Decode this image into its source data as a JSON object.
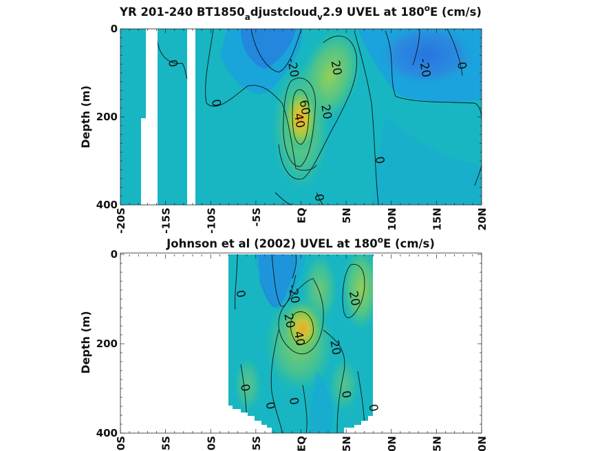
{
  "chart_data": [
    {
      "type": "heatmap",
      "title": {
        "main": "YR 201-240 BT1850",
        "sub1": "a",
        "mid": "djustcloud",
        "sub2": "v",
        "tail": "2.9 UVEL at 180",
        "sup": "o",
        "end": "E (cm/s)"
      },
      "ylabel": "Depth (m)",
      "xlim": [
        -20,
        20
      ],
      "ylim": [
        0,
        400
      ],
      "xticks": [
        -20,
        -15,
        -10,
        -5,
        0,
        5,
        10,
        15,
        20
      ],
      "xticklabels": [
        "-20S",
        "-15S",
        "-10S",
        "-5S",
        "EQ",
        "5N",
        "10N",
        "15N",
        "20N"
      ],
      "yticks": [
        0,
        200,
        400
      ],
      "yticklabels": [
        "0",
        "200",
        "400"
      ],
      "colormap": [
        "#2b6fe0",
        "#1aa3dc",
        "#17b6c2",
        "#3fc28f",
        "#8fcc55",
        "#e0c12d",
        "#f7a21f"
      ],
      "color_range": [
        -40,
        40
      ],
      "no_data_gaps": [
        [
          -17.6,
          -16.3
        ],
        [
          -13.5,
          -12.5
        ]
      ],
      "core": {
        "lat": 0.3,
        "depth": 170,
        "max_cmps": 60
      },
      "contour_labels": [
        {
          "text": "0",
          "lat": -14.6,
          "depth": 80
        },
        {
          "text": "0",
          "lat": -9.8,
          "depth": 170
        },
        {
          "text": "-20",
          "lat": -1.3,
          "depth": 90
        },
        {
          "text": "20",
          "lat": 3.5,
          "depth": 90
        },
        {
          "text": "60",
          "lat": 0.0,
          "depth": 180
        },
        {
          "text": "40",
          "lat": -0.6,
          "depth": 210
        },
        {
          "text": "20",
          "lat": 2.4,
          "depth": 190
        },
        {
          "text": "0",
          "lat": 8.3,
          "depth": 300
        },
        {
          "text": "0",
          "lat": 1.6,
          "depth": 385
        },
        {
          "text": "-20",
          "lat": 13.3,
          "depth": 90
        },
        {
          "text": "0",
          "lat": 17.4,
          "depth": 85
        }
      ]
    },
    {
      "type": "heatmap",
      "title": {
        "main": "Johnson et al (2002) UVEL at 180",
        "sup": "o",
        "end": "E (cm/s)"
      },
      "ylabel": "Depth (m)",
      "xlim": [
        -20,
        20
      ],
      "ylim": [
        0,
        400
      ],
      "xticks": [
        -20,
        -15,
        -10,
        -5,
        0,
        5,
        10,
        15,
        20
      ],
      "xticklabels": [
        "20S",
        "15S",
        "10S",
        "5S",
        "EQ",
        "5N",
        "10N",
        "15N",
        "20N"
      ],
      "yticks": [
        0,
        200,
        400
      ],
      "yticklabels": [
        "0",
        "200",
        "400"
      ],
      "data_lat_range": [
        -8,
        8
      ],
      "core": {
        "lat": 0.5,
        "depth": 170,
        "max_cmps": 50
      },
      "contour_labels": [
        {
          "text": "0",
          "lat": -7.1,
          "depth": 90
        },
        {
          "text": "-20",
          "lat": -1.2,
          "depth": 90
        },
        {
          "text": "20",
          "lat": 5.5,
          "depth": 100
        },
        {
          "text": "20",
          "lat": -1.7,
          "depth": 150
        },
        {
          "text": "40",
          "lat": -0.6,
          "depth": 190
        },
        {
          "text": "20",
          "lat": 3.4,
          "depth": 210
        },
        {
          "text": "0",
          "lat": -6.6,
          "depth": 300
        },
        {
          "text": "0",
          "lat": -1.2,
          "depth": 330
        },
        {
          "text": "0",
          "lat": 4.6,
          "depth": 315
        },
        {
          "text": "0",
          "lat": -3.8,
          "depth": 340
        },
        {
          "text": "0",
          "lat": 7.6,
          "depth": 345
        }
      ]
    }
  ]
}
